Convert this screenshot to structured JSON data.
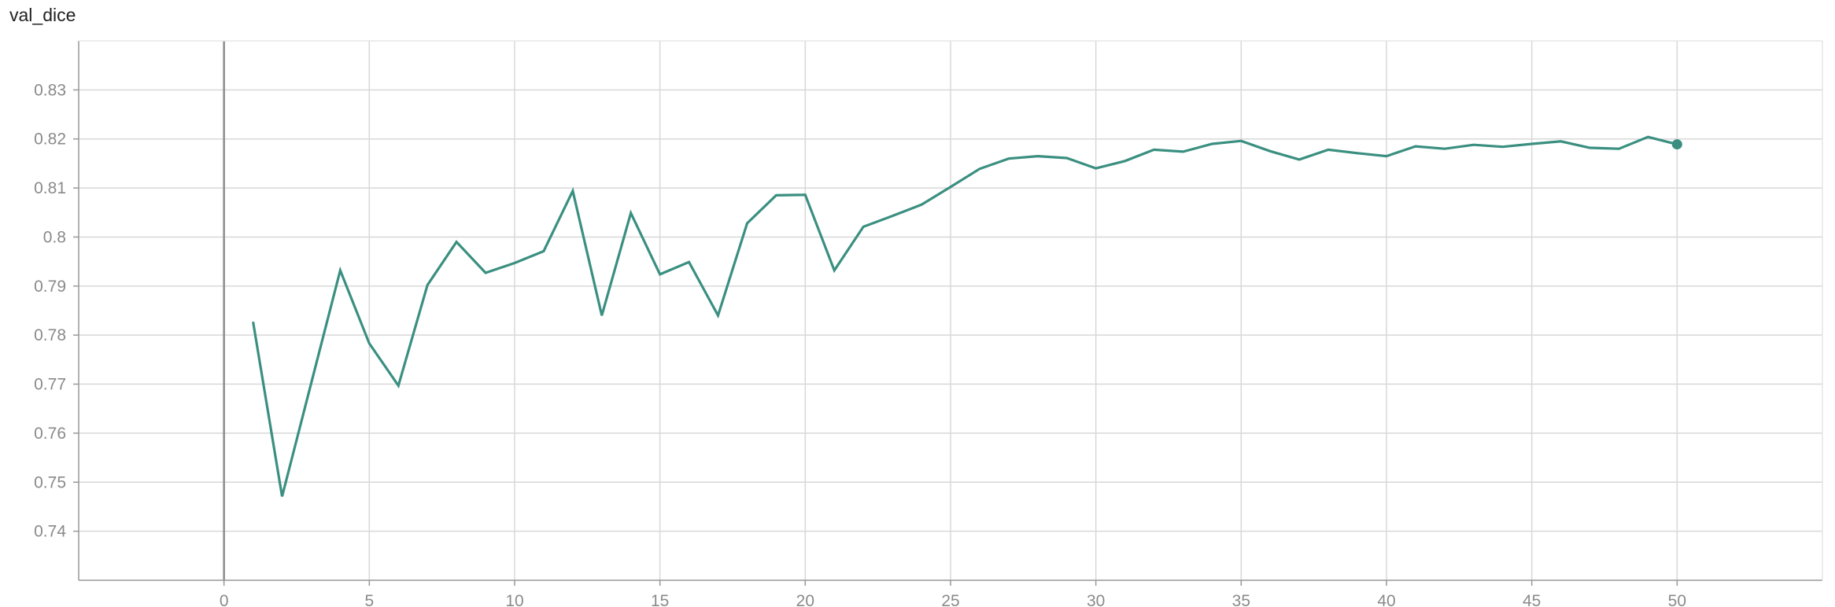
{
  "chart_data": {
    "type": "line",
    "title": "val_dice",
    "xlabel": "",
    "ylabel": "",
    "xlim": [
      -5,
      55
    ],
    "ylim": [
      0.73,
      0.84
    ],
    "x_ticks": [
      "0",
      "5",
      "10",
      "15",
      "20",
      "25",
      "30",
      "35",
      "40",
      "45",
      "50"
    ],
    "y_ticks": [
      "0.74",
      "0.75",
      "0.76",
      "0.77",
      "0.78",
      "0.79",
      "0.8",
      "0.81",
      "0.82",
      "0.83"
    ],
    "grid": true,
    "line_color": "#3a8f80",
    "axis_color": "#999999",
    "grid_color": "#d8d8d8",
    "series": [
      {
        "x": [
          1,
          2,
          3,
          4,
          5,
          6,
          7,
          8,
          9,
          10,
          11,
          12,
          13,
          14,
          15,
          16,
          17,
          18,
          19,
          20,
          21,
          22,
          23,
          24,
          25,
          26,
          27,
          28,
          29,
          30,
          31,
          32,
          33,
          34,
          35,
          36,
          37,
          38,
          39,
          40,
          41,
          42,
          43,
          44,
          45,
          46,
          47,
          48,
          49,
          50
        ],
        "values": [
          0.7827,
          0.7471,
          0.7702,
          0.7932,
          0.7783,
          0.7697,
          0.7902,
          0.799,
          0.7927,
          0.7947,
          0.7971,
          0.8094,
          0.784,
          0.8049,
          0.7924,
          0.7949,
          0.784,
          0.8028,
          0.8085,
          0.8086,
          0.7932,
          0.8021,
          0.8043,
          0.8066,
          0.8102,
          0.8139,
          0.816,
          0.8165,
          0.8161,
          0.814,
          0.8155,
          0.8178,
          0.8174,
          0.819,
          0.8196,
          0.8175,
          0.8158,
          0.8178,
          0.8171,
          0.8165,
          0.8185,
          0.818,
          0.8188,
          0.8184,
          0.819,
          0.8195,
          0.8182,
          0.818,
          0.8204,
          0.8189
        ]
      }
    ]
  }
}
